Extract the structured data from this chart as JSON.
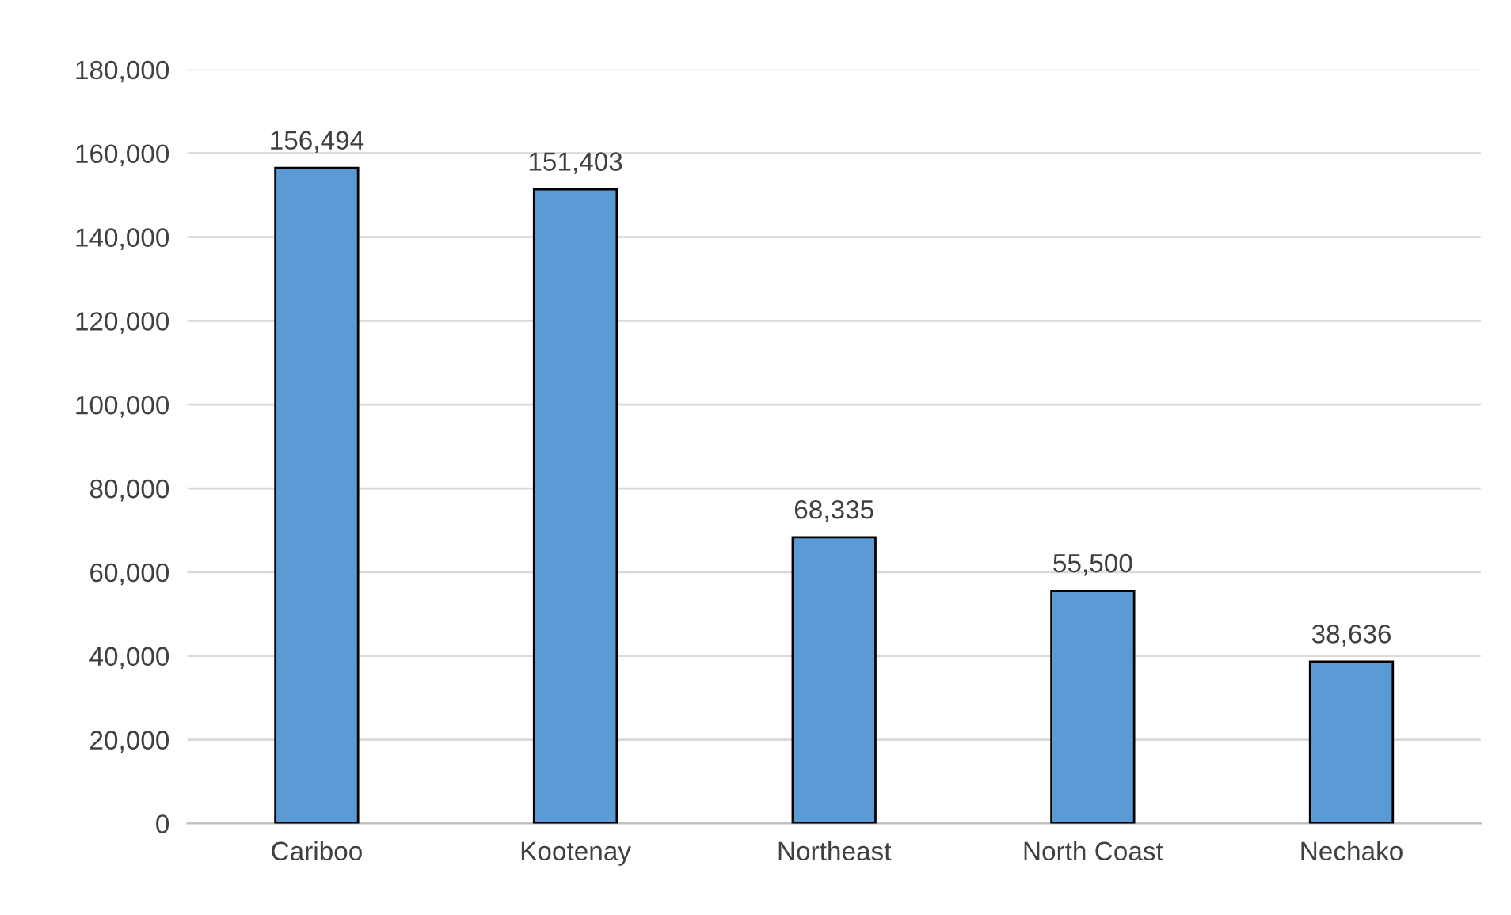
{
  "chart_data": {
    "type": "bar",
    "categories": [
      "Cariboo",
      "Kootenay",
      "Northeast",
      "North Coast",
      "Nechako"
    ],
    "values": [
      156494,
      151403,
      68335,
      55500,
      38636
    ],
    "value_labels": [
      "156,494",
      "151,403",
      "68,335",
      "55,500",
      "38,636"
    ],
    "color": "#5b9bd5",
    "ylim": [
      0,
      180000
    ],
    "yticks": [
      {
        "value": 0,
        "label": "0"
      },
      {
        "value": 20000,
        "label": "20,000"
      },
      {
        "value": 40000,
        "label": "40,000"
      },
      {
        "value": 60000,
        "label": "60,000"
      },
      {
        "value": 80000,
        "label": "80,000"
      },
      {
        "value": 100000,
        "label": "100,000"
      },
      {
        "value": 120000,
        "label": "120,000"
      },
      {
        "value": 140000,
        "label": "140,000"
      },
      {
        "value": 160000,
        "label": "160,000"
      },
      {
        "value": 180000,
        "label": "180,000"
      }
    ],
    "grid": "y",
    "legend": false
  }
}
